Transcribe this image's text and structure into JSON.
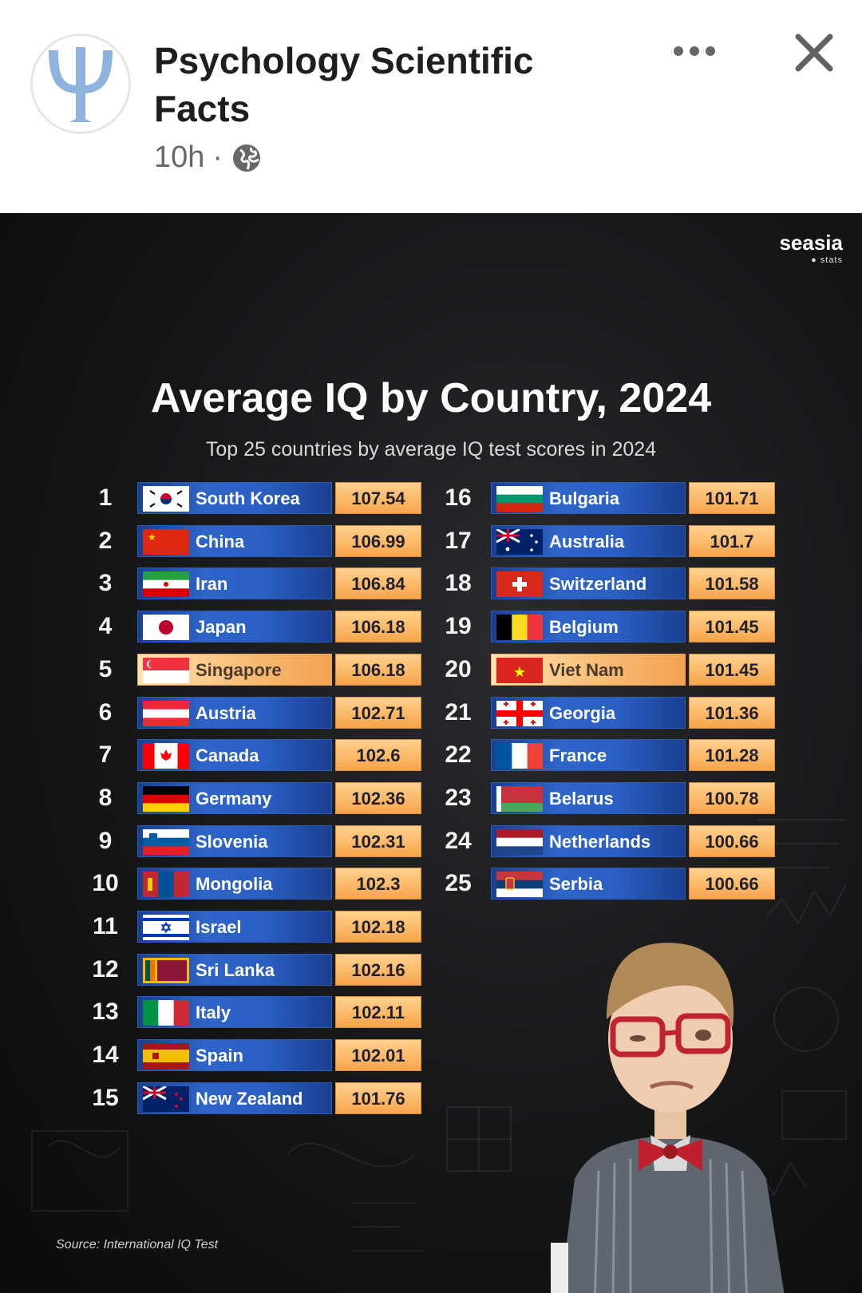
{
  "header": {
    "page_name": "Psychology Scientific Facts",
    "time": "10h",
    "separator": "·",
    "avatar_icon": "psi-logo-icon",
    "more_icon": "more-dots-icon",
    "close_icon": "close-icon",
    "privacy_icon": "globe-icon"
  },
  "infographic": {
    "brand_name": "seasia",
    "brand_sub": "● stats",
    "title": "Average IQ by Country, 2024",
    "subtitle": "Top 25 countries by average IQ test scores in 2024",
    "source": "Source: International IQ Test",
    "colors": {
      "bar_blue": "#2f64c9",
      "score_orange": "#f7a54a",
      "highlight": "#f7ba73"
    }
  },
  "chart_data": {
    "type": "table",
    "title": "Average IQ by Country, 2024",
    "subtitle": "Top 25 countries by average IQ test scores in 2024",
    "columns": [
      "rank",
      "country",
      "score"
    ],
    "rows": [
      {
        "rank": "1",
        "country": "South Korea",
        "score": "107.54",
        "flag": "kr"
      },
      {
        "rank": "2",
        "country": "China",
        "score": "106.99",
        "flag": "cn"
      },
      {
        "rank": "3",
        "country": "Iran",
        "score": "106.84",
        "flag": "ir"
      },
      {
        "rank": "4",
        "country": "Japan",
        "score": "106.18",
        "flag": "jp"
      },
      {
        "rank": "5",
        "country": "Singapore",
        "score": "106.18",
        "flag": "sg",
        "highlight": true
      },
      {
        "rank": "6",
        "country": "Austria",
        "score": "102.71",
        "flag": "at"
      },
      {
        "rank": "7",
        "country": "Canada",
        "score": "102.6",
        "flag": "ca"
      },
      {
        "rank": "8",
        "country": "Germany",
        "score": "102.36",
        "flag": "de"
      },
      {
        "rank": "9",
        "country": "Slovenia",
        "score": "102.31",
        "flag": "si"
      },
      {
        "rank": "10",
        "country": "Mongolia",
        "score": "102.3",
        "flag": "mn"
      },
      {
        "rank": "11",
        "country": "Israel",
        "score": "102.18",
        "flag": "il"
      },
      {
        "rank": "12",
        "country": "Sri Lanka",
        "score": "102.16",
        "flag": "lk"
      },
      {
        "rank": "13",
        "country": "Italy",
        "score": "102.11",
        "flag": "it"
      },
      {
        "rank": "14",
        "country": "Spain",
        "score": "102.01",
        "flag": "es"
      },
      {
        "rank": "15",
        "country": "New Zealand",
        "score": "101.76",
        "flag": "nz"
      },
      {
        "rank": "16",
        "country": "Bulgaria",
        "score": "101.71",
        "flag": "bg"
      },
      {
        "rank": "17",
        "country": "Australia",
        "score": "101.7",
        "flag": "au"
      },
      {
        "rank": "18",
        "country": "Switzerland",
        "score": "101.58",
        "flag": "ch"
      },
      {
        "rank": "19",
        "country": "Belgium",
        "score": "101.45",
        "flag": "be"
      },
      {
        "rank": "20",
        "country": "Viet Nam",
        "score": "101.45",
        "flag": "vn",
        "highlight": true
      },
      {
        "rank": "21",
        "country": "Georgia",
        "score": "101.36",
        "flag": "ge"
      },
      {
        "rank": "22",
        "country": "France",
        "score": "101.28",
        "flag": "fr"
      },
      {
        "rank": "23",
        "country": "Belarus",
        "score": "100.78",
        "flag": "by"
      },
      {
        "rank": "24",
        "country": "Netherlands",
        "score": "100.66",
        "flag": "nl"
      },
      {
        "rank": "25",
        "country": "Serbia",
        "score": "100.66",
        "flag": "rs"
      }
    ]
  }
}
